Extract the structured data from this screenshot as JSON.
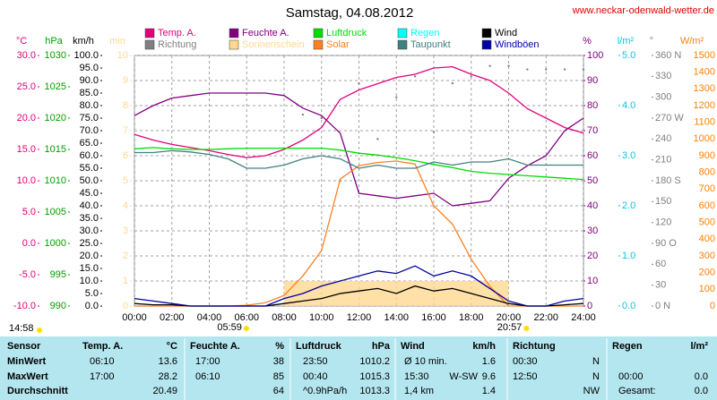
{
  "chart_data": {
    "type": "line",
    "title": "Samstag, 04.08.2012",
    "source": "www.neckar-odenwald-wetter.de",
    "x": [
      "00:00",
      "01:00",
      "02:00",
      "03:00",
      "04:00",
      "05:00",
      "06:00",
      "07:00",
      "08:00",
      "09:00",
      "10:00",
      "11:00",
      "12:00",
      "13:00",
      "14:00",
      "15:00",
      "16:00",
      "17:00",
      "18:00",
      "19:00",
      "20:00",
      "21:00",
      "22:00",
      "23:00",
      "24:00"
    ],
    "xlim": [
      "00:00",
      "24:00"
    ],
    "xticks": [
      "00:00",
      "02:00",
      "04:00",
      "06:00",
      "08:00",
      "10:00",
      "12:00",
      "14:00",
      "16:00",
      "18:00",
      "20:00",
      "22:00",
      "24:00"
    ],
    "grid": true,
    "y_axes": [
      {
        "label": "°C",
        "color": "#e0007a",
        "ylim": [
          -10,
          30
        ],
        "yticks": [
          {
            "value": -10,
            "label": "-10.0"
          },
          {
            "value": -5,
            "label": "-5.0"
          },
          {
            "value": 0,
            "label": "0.0"
          },
          {
            "value": 5,
            "label": "5.0"
          },
          {
            "value": 10,
            "label": "10.0"
          },
          {
            "value": 15,
            "label": "15.0"
          },
          {
            "value": 20,
            "label": "20.0"
          },
          {
            "value": 25,
            "label": "25.0"
          },
          {
            "value": 30,
            "label": "30.0"
          }
        ]
      },
      {
        "label": "hPa",
        "color": "#00a000",
        "ylim": [
          990,
          1030
        ],
        "yticks": [
          990,
          995,
          1000,
          1005,
          1010,
          1015,
          1020,
          1025,
          1030
        ]
      },
      {
        "label": "km/h",
        "color": "#000000",
        "ylim": [
          0,
          100
        ],
        "yticks": [
          {
            "value": 0,
            "label": "0.0"
          },
          {
            "value": 5,
            "label": "5.0"
          },
          {
            "value": 10,
            "label": "10.0"
          },
          {
            "value": 15,
            "label": "15.0"
          },
          {
            "value": 20,
            "label": "20.0"
          },
          {
            "value": 25,
            "label": "25.0"
          },
          {
            "value": 30,
            "label": "30.0"
          },
          {
            "value": 35,
            "label": "35.0"
          },
          {
            "value": 40,
            "label": "40.0"
          },
          {
            "value": 45,
            "label": "45.0"
          },
          {
            "value": 50,
            "label": "50.0"
          },
          {
            "value": 55,
            "label": "55.0"
          },
          {
            "value": 60,
            "label": "60.0"
          },
          {
            "value": 65,
            "label": "65.0"
          },
          {
            "value": 70,
            "label": "70.0"
          },
          {
            "value": 75,
            "label": "75.0"
          },
          {
            "value": 80,
            "label": "80.0"
          },
          {
            "value": 85,
            "label": "85.0"
          },
          {
            "value": 90,
            "label": "90.0"
          },
          {
            "value": 95,
            "label": "95.0"
          },
          {
            "value": 100,
            "label": "100.0"
          }
        ]
      },
      {
        "label": "min",
        "color": "#ffd890",
        "ylim": [
          0,
          10
        ],
        "yticks": [
          0,
          1,
          2,
          3,
          4,
          5,
          6,
          7,
          8,
          9,
          10
        ]
      },
      {
        "label": "%",
        "color": "#800080",
        "ylim": [
          0,
          100
        ],
        "yticks": [
          0,
          10,
          20,
          30,
          40,
          50,
          60,
          70,
          80,
          90,
          100
        ]
      },
      {
        "label": "l/m²",
        "color": "#00c8e8",
        "ylim": [
          0,
          5
        ],
        "yticks": [
          {
            "value": 0,
            "label": "0.0"
          },
          {
            "value": 1,
            "label": "1.0"
          },
          {
            "value": 2,
            "label": "2.0"
          },
          {
            "value": 3,
            "label": "3.0"
          },
          {
            "value": 4,
            "label": "4.0"
          },
          {
            "value": 5,
            "label": "5.0"
          }
        ]
      },
      {
        "label": "°",
        "color": "#808080",
        "ylim": [
          0,
          360
        ],
        "yticks": [
          {
            "value": 0,
            "label": "0 N"
          },
          30,
          60,
          {
            "value": 90,
            "label": "90 O"
          },
          120,
          150,
          {
            "value": 180,
            "label": "180 S"
          },
          210,
          240,
          {
            "value": 270,
            "label": "270 W"
          },
          300,
          330,
          {
            "value": 360,
            "label": "360 N"
          }
        ]
      },
      {
        "label": "W/m²",
        "color": "#ff8000",
        "ylim": [
          0,
          1500
        ],
        "yticks": [
          0,
          100,
          200,
          300,
          400,
          500,
          600,
          700,
          800,
          900,
          1000,
          1100,
          1200,
          1300,
          1400,
          1500
        ]
      }
    ],
    "series": [
      {
        "name": "Temp. A.",
        "color": "#e4007c",
        "kind": "line",
        "axis": 0,
        "values": [
          17.4,
          16.5,
          15.8,
          15.3,
          14.8,
          14.2,
          13.7,
          14.0,
          15.0,
          16.5,
          18.5,
          23.0,
          24.5,
          25.5,
          26.5,
          27.0,
          28.0,
          28.2,
          27.0,
          26.0,
          24.0,
          21.5,
          20.0,
          18.5,
          17.6
        ]
      },
      {
        "name": "Richtung",
        "color": "#808080",
        "kind": "scatter",
        "axis": 6,
        "values": [
          null,
          null,
          null,
          null,
          null,
          null,
          null,
          null,
          null,
          275,
          270,
          180,
          320,
          240,
          300,
          330,
          250,
          320,
          330,
          345,
          345,
          340,
          340,
          340,
          340
        ]
      },
      {
        "name": "Feuchte A.",
        "color": "#800080",
        "kind": "line",
        "axis": 4,
        "values": [
          76,
          80,
          83,
          84,
          85,
          85,
          85,
          85,
          84,
          79,
          76,
          69,
          45,
          44,
          43,
          44,
          45,
          40,
          41,
          42,
          51,
          56,
          60,
          70,
          75
        ]
      },
      {
        "name": "Sonnenschein",
        "color": "#ffd890",
        "kind": "bar",
        "axis": 3,
        "values": [
          0,
          0,
          0,
          0,
          0,
          0,
          0,
          0,
          1,
          1,
          1,
          1,
          1,
          1,
          1,
          1,
          1,
          1,
          1,
          1,
          0,
          0,
          0,
          0,
          0
        ]
      },
      {
        "name": "Luftdruck",
        "color": "#00dd00",
        "kind": "line",
        "axis": 1,
        "values": [
          1015.1,
          1015.3,
          1015.1,
          1015.0,
          1015.0,
          1015.1,
          1015.2,
          1015.2,
          1015.2,
          1015.2,
          1015.2,
          1014.9,
          1014.4,
          1014.1,
          1013.7,
          1013.2,
          1012.6,
          1012.1,
          1011.5,
          1011.2,
          1011.0,
          1010.8,
          1010.6,
          1010.4,
          1010.2
        ]
      },
      {
        "name": "Solar",
        "color": "#ff8020",
        "kind": "line",
        "axis": 7,
        "values": [
          0,
          0,
          0,
          0,
          0,
          0,
          5,
          20,
          64,
          180,
          332,
          760,
          840,
          860,
          868,
          850,
          600,
          490,
          280,
          118,
          0,
          0,
          0,
          0,
          0
        ]
      },
      {
        "name": "Regen",
        "color": "#00ffff",
        "kind": "bar",
        "axis": 5,
        "values": [
          0,
          0,
          0,
          0,
          0,
          0,
          0,
          0,
          0,
          0,
          0,
          0,
          0,
          0,
          0,
          0,
          0,
          0,
          0,
          0,
          0,
          0,
          0,
          0,
          0
        ]
      },
      {
        "name": "Taupunkt",
        "color": "#408080",
        "kind": "line",
        "axis": 0,
        "values": [
          14.5,
          14.5,
          14.8,
          14.6,
          14.2,
          13.5,
          12.0,
          12.0,
          12.5,
          13.5,
          14.0,
          13.5,
          12.0,
          12.5,
          12.0,
          12.0,
          13.0,
          12.5,
          13.0,
          13.0,
          13.5,
          12.5,
          12.5,
          12.5,
          12.5
        ]
      },
      {
        "name": "Wind",
        "color": "#000000",
        "kind": "line",
        "axis": 2,
        "values": [
          1,
          0.5,
          0.5,
          0,
          0,
          0,
          0,
          0,
          1,
          2,
          3,
          5,
          6,
          7,
          5,
          8,
          6,
          7,
          5,
          3,
          1,
          0,
          0,
          0.5,
          1
        ]
      },
      {
        "name": "Windböen",
        "color": "#0000a0",
        "kind": "line",
        "axis": 2,
        "values": [
          3,
          2,
          1,
          0,
          0,
          0,
          0,
          0,
          3,
          5,
          8,
          10,
          12,
          14,
          13,
          16,
          12,
          14,
          12,
          7,
          2,
          0,
          0,
          2,
          3
        ]
      }
    ],
    "sun_markers": [
      "05:59",
      "20:57"
    ],
    "note": "14:58"
  },
  "table": {
    "header": [
      {
        "name": "Sensor"
      },
      {
        "name": "Temp. A.",
        "unit": "°C"
      },
      {
        "name": "Feuchte A.",
        "unit": "%"
      },
      {
        "name": "Luftdruck",
        "unit": "hPa"
      },
      {
        "name": "Wind",
        "unit": "km/h"
      },
      {
        "name": "Richtung"
      },
      {
        "name": "Regen",
        "unit": "l/m²"
      }
    ],
    "rows": [
      {
        "label": "MinWert",
        "cells": [
          {
            "time": "06:10",
            "value": 13.6
          },
          {
            "time": "17:00",
            "value": 38
          },
          {
            "time": "23:50",
            "value": 1010.2
          },
          {
            "time": "Ø 10 min.",
            "value": 1.6
          },
          {
            "time": "00:30",
            "value": "N"
          },
          null
        ]
      },
      {
        "label": "MaxWert",
        "cells": [
          {
            "time": "17:00",
            "value": 28.2
          },
          {
            "time": "06:10",
            "value": 85
          },
          {
            "time": "00:40",
            "value": 1015.3
          },
          {
            "time": "15:30",
            "extra": "W-SW",
            "value": 9.6
          },
          {
            "time": "12:50",
            "value": "N"
          },
          {
            "time": "00:00",
            "value": "0.0"
          }
        ]
      },
      {
        "label": "Durchschnitt",
        "cells": [
          {
            "value": 20.49
          },
          {
            "value": 64
          },
          {
            "time": "^0.9hPa/h",
            "value": 1013.3
          },
          {
            "time": "1,4 km",
            "value": 1.4
          },
          {
            "value": "NW"
          },
          {
            "time": "Gesamt:",
            "value": "0.0"
          }
        ]
      }
    ]
  }
}
